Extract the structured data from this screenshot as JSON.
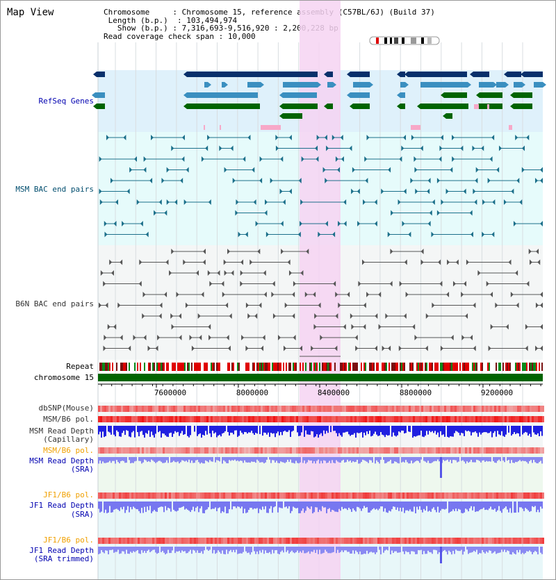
{
  "header": {
    "title": "Map View",
    "chromosome_key": "Chromosome",
    "chromosome_value": "Chromosome 15, reference assembly (C57BL/6J) (Build 37)",
    "length_key": "Length (b.p.)",
    "length_value": "103,494,974",
    "show_key": "Show (b.p.)",
    "show_value": "7,316,693-9,516,920 : 2,200,228 bp",
    "coverage_key": "Read coverage check span",
    "coverage_value": "10,000"
  },
  "tracks": {
    "refseq": "RefSeq Genes",
    "msm_bac": "MSM BAC end pairs",
    "b6n_bac": "B6N BAC end pairs",
    "repeat": "Repeat",
    "chromosome": "chromosome 15",
    "dbsnp": "dbSNP(Mouse)",
    "msm_pol1": "MSM/B6 pol.",
    "msm_depth_cap_1": "MSM Read Depth",
    "msm_depth_cap_2": "(Capillary)",
    "msm_pol2": "MSM/B6 pol.",
    "msm_depth_sra_1": "MSM Read Depth",
    "msm_depth_sra_2": "(SRA)",
    "jf1_pol1": "JF1/B6 pol.",
    "jf1_depth_sra_1": "JF1 Read Depth",
    "jf1_depth_sra_2": "(SRA)",
    "jf1_pol2": "JF1/B6 pol.",
    "jf1_depth_trim_1": "JF1 Read Depth",
    "jf1_depth_trim_2": "(SRA trimmed)"
  },
  "axis": {
    "ticks": [
      "7600000",
      "8000000",
      "8400000",
      "8800000",
      "9200000"
    ]
  },
  "colors": {
    "refseq_bg": "#dff1fb",
    "bac_bg": "#e6fbfb",
    "b6n_bg": "#f4f6f6",
    "highlight": "#f6d4f2",
    "chromosome": "#006400",
    "gene_dark": "#08306b",
    "gene_mid": "#3a8fc0",
    "gene_green": "#006400"
  }
}
